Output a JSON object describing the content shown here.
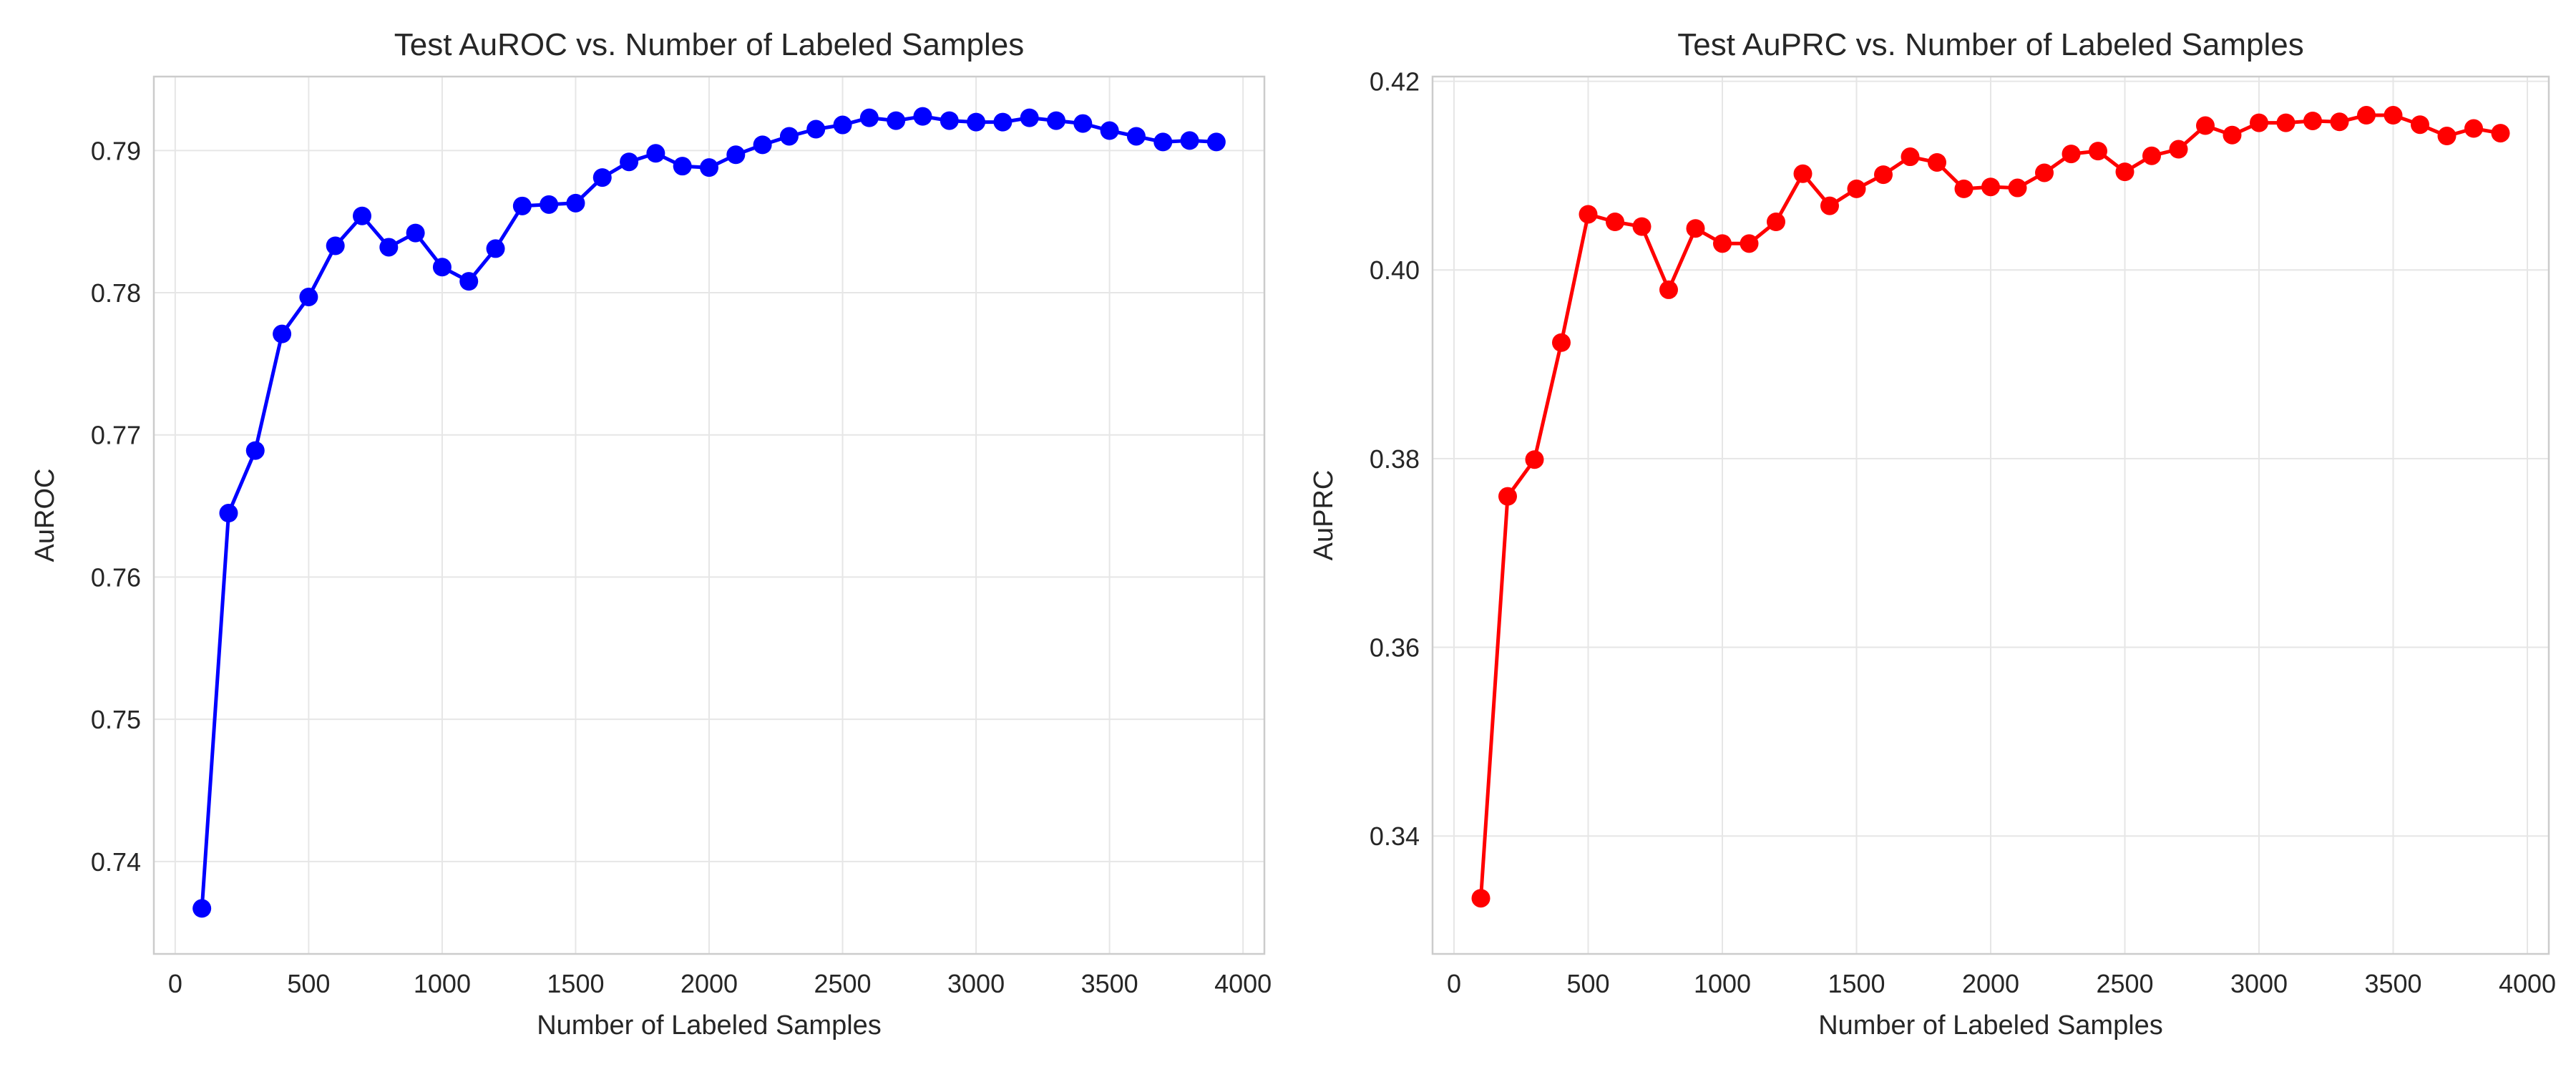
{
  "chart_data": [
    {
      "type": "line",
      "title": "Test AuROC vs. Number of Labeled Samples",
      "xlabel": "Number of Labeled Samples",
      "ylabel": "AuROC",
      "xlim": [
        -80,
        4080
      ],
      "ylim": [
        0.7335,
        0.7952
      ],
      "xticks": [
        0,
        500,
        1000,
        1500,
        2000,
        2500,
        3000,
        3500,
        4000
      ],
      "yticks": [
        0.74,
        0.75,
        0.76,
        0.77,
        0.78,
        0.79
      ],
      "ytick_labels": [
        "0.74",
        "0.75",
        "0.76",
        "0.77",
        "0.78",
        "0.79"
      ],
      "grid": true,
      "series": [
        {
          "color": "#0000ff",
          "marker": "circle",
          "x": [
            100,
            200,
            300,
            400,
            500,
            600,
            700,
            800,
            900,
            1000,
            1100,
            1200,
            1300,
            1400,
            1500,
            1600,
            1700,
            1800,
            1900,
            2000,
            2100,
            2200,
            2300,
            2400,
            2500,
            2600,
            2700,
            2800,
            2900,
            3000,
            3100,
            3200,
            3300,
            3400,
            3500,
            3600,
            3700,
            3800,
            3900
          ],
          "y": [
            0.7367,
            0.7645,
            0.7689,
            0.7771,
            0.7797,
            0.7833,
            0.7854,
            0.7832,
            0.7842,
            0.7818,
            0.7808,
            0.7831,
            0.7861,
            0.7862,
            0.7863,
            0.7881,
            0.7892,
            0.7898,
            0.7889,
            0.7888,
            0.7897,
            0.7904,
            0.791,
            0.7915,
            0.7918,
            0.7923,
            0.7921,
            0.7924,
            0.7921,
            0.792,
            0.792,
            0.7923,
            0.7921,
            0.7919,
            0.7914,
            0.791,
            0.7906,
            0.7907,
            0.7906
          ]
        }
      ]
    },
    {
      "type": "line",
      "title": "Test AuPRC vs. Number of Labeled Samples",
      "xlabel": "Number of Labeled Samples",
      "ylabel": "AuPRC",
      "xlim": [
        -80,
        4080
      ],
      "ylim": [
        0.3275,
        0.4205
      ],
      "xticks": [
        0,
        500,
        1000,
        1500,
        2000,
        2500,
        3000,
        3500,
        4000
      ],
      "yticks": [
        0.34,
        0.36,
        0.38,
        0.4,
        0.42
      ],
      "ytick_labels": [
        "0.34",
        "0.36",
        "0.38",
        "0.40",
        "0.42"
      ],
      "grid": true,
      "series": [
        {
          "color": "#ff0000",
          "marker": "circle",
          "x": [
            100,
            200,
            300,
            400,
            500,
            600,
            700,
            800,
            900,
            1000,
            1100,
            1200,
            1300,
            1400,
            1500,
            1600,
            1700,
            1800,
            1900,
            2000,
            2100,
            2200,
            2300,
            2400,
            2500,
            2600,
            2700,
            2800,
            2900,
            3000,
            3100,
            3200,
            3300,
            3400,
            3500,
            3600,
            3700,
            3800,
            3900
          ],
          "y": [
            0.3334,
            0.376,
            0.3799,
            0.3923,
            0.4059,
            0.4051,
            0.4046,
            0.3979,
            0.4044,
            0.4028,
            0.4028,
            0.4051,
            0.4102,
            0.4068,
            0.4086,
            0.4101,
            0.412,
            0.4114,
            0.4086,
            0.4088,
            0.4087,
            0.4103,
            0.4123,
            0.4126,
            0.4104,
            0.4121,
            0.4128,
            0.4153,
            0.4143,
            0.4156,
            0.4156,
            0.4158,
            0.4157,
            0.4164,
            0.4164,
            0.4154,
            0.4142,
            0.415,
            0.4145
          ]
        }
      ]
    }
  ]
}
